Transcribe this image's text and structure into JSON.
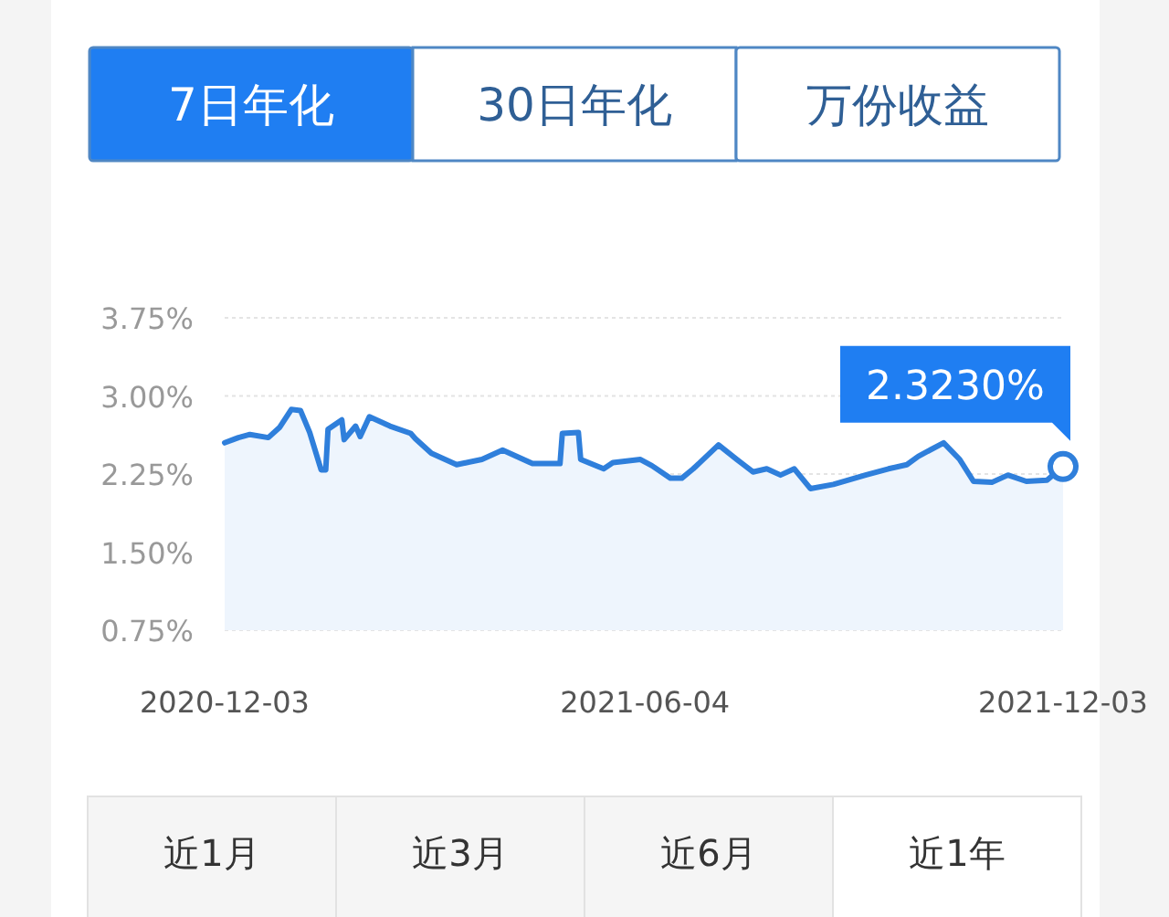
{
  "chart_data": {
    "type": "area",
    "title": "7日年化",
    "x": [
      "2020-12-03",
      "2020-12-09",
      "2020-12-14",
      "2020-12-22",
      "2020-12-27",
      "2021-01-01",
      "2021-01-05",
      "2021-01-09",
      "2021-01-14",
      "2021-01-16",
      "2021-01-17",
      "2021-01-23",
      "2021-01-24",
      "2021-01-29",
      "2021-01-31",
      "2021-02-04",
      "2021-02-13",
      "2021-02-22",
      "2021-02-24",
      "2021-03-03",
      "2021-03-14",
      "2021-03-25",
      "2021-04-03",
      "2021-04-16",
      "2021-04-28",
      "2021-04-29",
      "2021-05-06",
      "2021-05-07",
      "2021-05-17",
      "2021-05-21",
      "2021-06-02",
      "2021-06-07",
      "2021-06-15",
      "2021-06-20",
      "2021-06-25",
      "2021-07-06",
      "2021-07-14",
      "2021-07-21",
      "2021-07-27",
      "2021-08-02",
      "2021-08-08",
      "2021-08-15",
      "2021-08-25",
      "2021-09-08",
      "2021-09-18",
      "2021-09-26",
      "2021-10-01",
      "2021-10-12",
      "2021-10-19",
      "2021-10-25",
      "2021-11-02",
      "2021-11-09",
      "2021-11-17",
      "2021-11-26",
      "2021-12-03"
    ],
    "series": [
      {
        "color": "#2f7fdb",
        "values": [
          2.55,
          2.6,
          2.63,
          2.6,
          2.7,
          2.87,
          2.86,
          2.65,
          2.29,
          2.29,
          2.68,
          2.77,
          2.58,
          2.71,
          2.61,
          2.8,
          2.71,
          2.64,
          2.59,
          2.45,
          2.34,
          2.39,
          2.48,
          2.35,
          2.35,
          2.64,
          2.65,
          2.39,
          2.3,
          2.36,
          2.39,
          2.33,
          2.21,
          2.21,
          2.3,
          2.53,
          2.39,
          2.27,
          2.3,
          2.24,
          2.3,
          2.11,
          2.15,
          2.24,
          2.3,
          2.34,
          2.42,
          2.55,
          2.39,
          2.18,
          2.17,
          2.24,
          2.18,
          2.19,
          2.323
        ]
      }
    ],
    "xlim": [
      "2020-12-03",
      "2021-12-03"
    ],
    "xticks": [
      "2020-12-03",
      "2021-06-04",
      "2021-12-03"
    ],
    "ylim": [
      0.75,
      3.75
    ],
    "yticks": [
      {
        "value": 0.75,
        "label": "0.75%"
      },
      {
        "value": 1.5,
        "label": "1.50%"
      },
      {
        "value": 2.25,
        "label": "2.25%"
      },
      {
        "value": 3.0,
        "label": "3.00%"
      },
      {
        "value": 3.75,
        "label": "3.75%"
      }
    ],
    "grid": "y",
    "annotations": [
      {
        "text": "2.3230%",
        "x": "2021-12-03",
        "y": 2.323
      },
      "30日年化",
      "万份收益",
      "近1月",
      "近3月",
      "近6月",
      "近1年"
    ]
  }
}
